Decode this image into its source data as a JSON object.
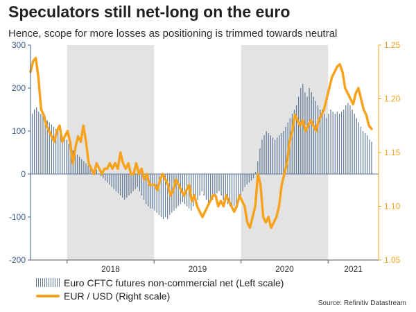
{
  "title": "Speculators still net-long on the euro",
  "subtitle": "Hence, scope for more losses as positioning is trimmed towards neutral",
  "source": "Source: Refinitiv Datastream",
  "colors": {
    "bars": "#5f7a9a",
    "line": "#f7a21b",
    "left_axis": "#355b88",
    "right_axis": "#f7a21b",
    "shade": "#e3e3e3"
  },
  "chart_data": {
    "type": "bar+line",
    "legend_position": "bottom-left",
    "grid": false,
    "x_range": [
      2017.58,
      2021.58
    ],
    "shaded_years": [
      "2018",
      "2020"
    ],
    "year_labels": [
      {
        "label": "2018",
        "x": 2018.0
      },
      {
        "label": "2019",
        "x": 2019.0
      },
      {
        "label": "2020",
        "x": 2020.0
      },
      {
        "label": "2021",
        "x": 2021.0
      }
    ],
    "left_axis": {
      "min": -200,
      "max": 300,
      "ticks": [
        -200,
        -100,
        0,
        100,
        200,
        300
      ],
      "tick_labels": [
        "-200",
        "-100",
        "0",
        "100",
        "200",
        "300"
      ]
    },
    "right_axis": {
      "min": 1.05,
      "max": 1.25,
      "ticks": [
        1.05,
        1.1,
        1.15,
        1.2,
        1.25
      ],
      "tick_labels": [
        "1.05",
        "1.10",
        "1.15",
        "1.20",
        "1.25"
      ]
    },
    "series": [
      {
        "name": "Euro CFTC futures non-commercial net (Left scale)",
        "type": "bar",
        "axis": "left",
        "x_start": 2017.6,
        "x_end": 2021.5,
        "values": [
          140,
          150,
          155,
          145,
          140,
          135,
          130,
          125,
          120,
          115,
          110,
          105,
          100,
          95,
          90,
          85,
          80,
          70,
          60,
          55,
          50,
          45,
          40,
          35,
          30,
          25,
          20,
          15,
          10,
          5,
          10,
          0,
          -5,
          -10,
          -15,
          -20,
          -25,
          -30,
          -35,
          -40,
          -45,
          -50,
          -55,
          -60,
          -55,
          -50,
          -45,
          -40,
          -35,
          -30,
          -40,
          -50,
          -60,
          -70,
          -75,
          -80,
          -80,
          -85,
          -90,
          -95,
          -100,
          -105,
          -100,
          -105,
          -95,
          -90,
          -85,
          -80,
          -75,
          -70,
          -65,
          -70,
          -75,
          -80,
          -85,
          -75,
          -70,
          -60,
          -50,
          -40,
          -50,
          -60,
          -70,
          -65,
          -60,
          -50,
          -45,
          -40,
          -50,
          -60,
          -65,
          -70,
          -75,
          -80,
          -75,
          -70,
          -60,
          -50,
          -40,
          -30,
          -25,
          -20,
          -15,
          -10,
          5,
          30,
          60,
          80,
          90,
          100,
          95,
          90,
          85,
          80,
          85,
          90,
          95,
          100,
          110,
          120,
          130,
          140,
          150,
          160,
          180,
          200,
          210,
          190,
          180,
          200,
          190,
          180,
          170,
          160,
          150,
          150,
          140,
          130,
          140,
          150,
          145,
          140,
          145,
          140,
          145,
          150,
          160,
          165,
          160,
          150,
          140,
          130,
          120,
          110,
          100,
          95,
          90,
          80,
          75
        ]
      },
      {
        "name": "EUR / USD (Right scale)",
        "type": "line",
        "axis": "right",
        "x_start": 2017.58,
        "x_end": 2021.5,
        "values": [
          1.225,
          1.235,
          1.238,
          1.22,
          1.19,
          1.185,
          1.175,
          1.17,
          1.165,
          1.16,
          1.17,
          1.175,
          1.16,
          1.165,
          1.17,
          1.16,
          1.14,
          1.155,
          1.165,
          1.16,
          1.175,
          1.16,
          1.14,
          1.135,
          1.13,
          1.14,
          1.135,
          1.13,
          1.135,
          1.135,
          1.14,
          1.135,
          1.14,
          1.135,
          1.15,
          1.14,
          1.135,
          1.14,
          1.13,
          1.13,
          1.14,
          1.13,
          1.135,
          1.125,
          1.13,
          1.12,
          1.12,
          1.12,
          1.115,
          1.125,
          1.13,
          1.125,
          1.12,
          1.11,
          1.115,
          1.125,
          1.12,
          1.115,
          1.11,
          1.115,
          1.12,
          1.105,
          1.11,
          1.1,
          1.095,
          1.09,
          1.095,
          1.1,
          1.105,
          1.11,
          1.11,
          1.1,
          1.105,
          1.1,
          1.11,
          1.105,
          1.1,
          1.095,
          1.1,
          1.11,
          1.105,
          1.1,
          1.085,
          1.08,
          1.09,
          1.1,
          1.13,
          1.12,
          1.09,
          1.085,
          1.09,
          1.08,
          1.085,
          1.09,
          1.1,
          1.12,
          1.13,
          1.14,
          1.16,
          1.17,
          1.185,
          1.18,
          1.175,
          1.18,
          1.17,
          1.175,
          1.18,
          1.175,
          1.17,
          1.18,
          1.185,
          1.19,
          1.2,
          1.21,
          1.22,
          1.225,
          1.23,
          1.232,
          1.225,
          1.21,
          1.205,
          1.2,
          1.195,
          1.205,
          1.21,
          1.2,
          1.19,
          1.185,
          1.175,
          1.172
        ]
      }
    ]
  }
}
